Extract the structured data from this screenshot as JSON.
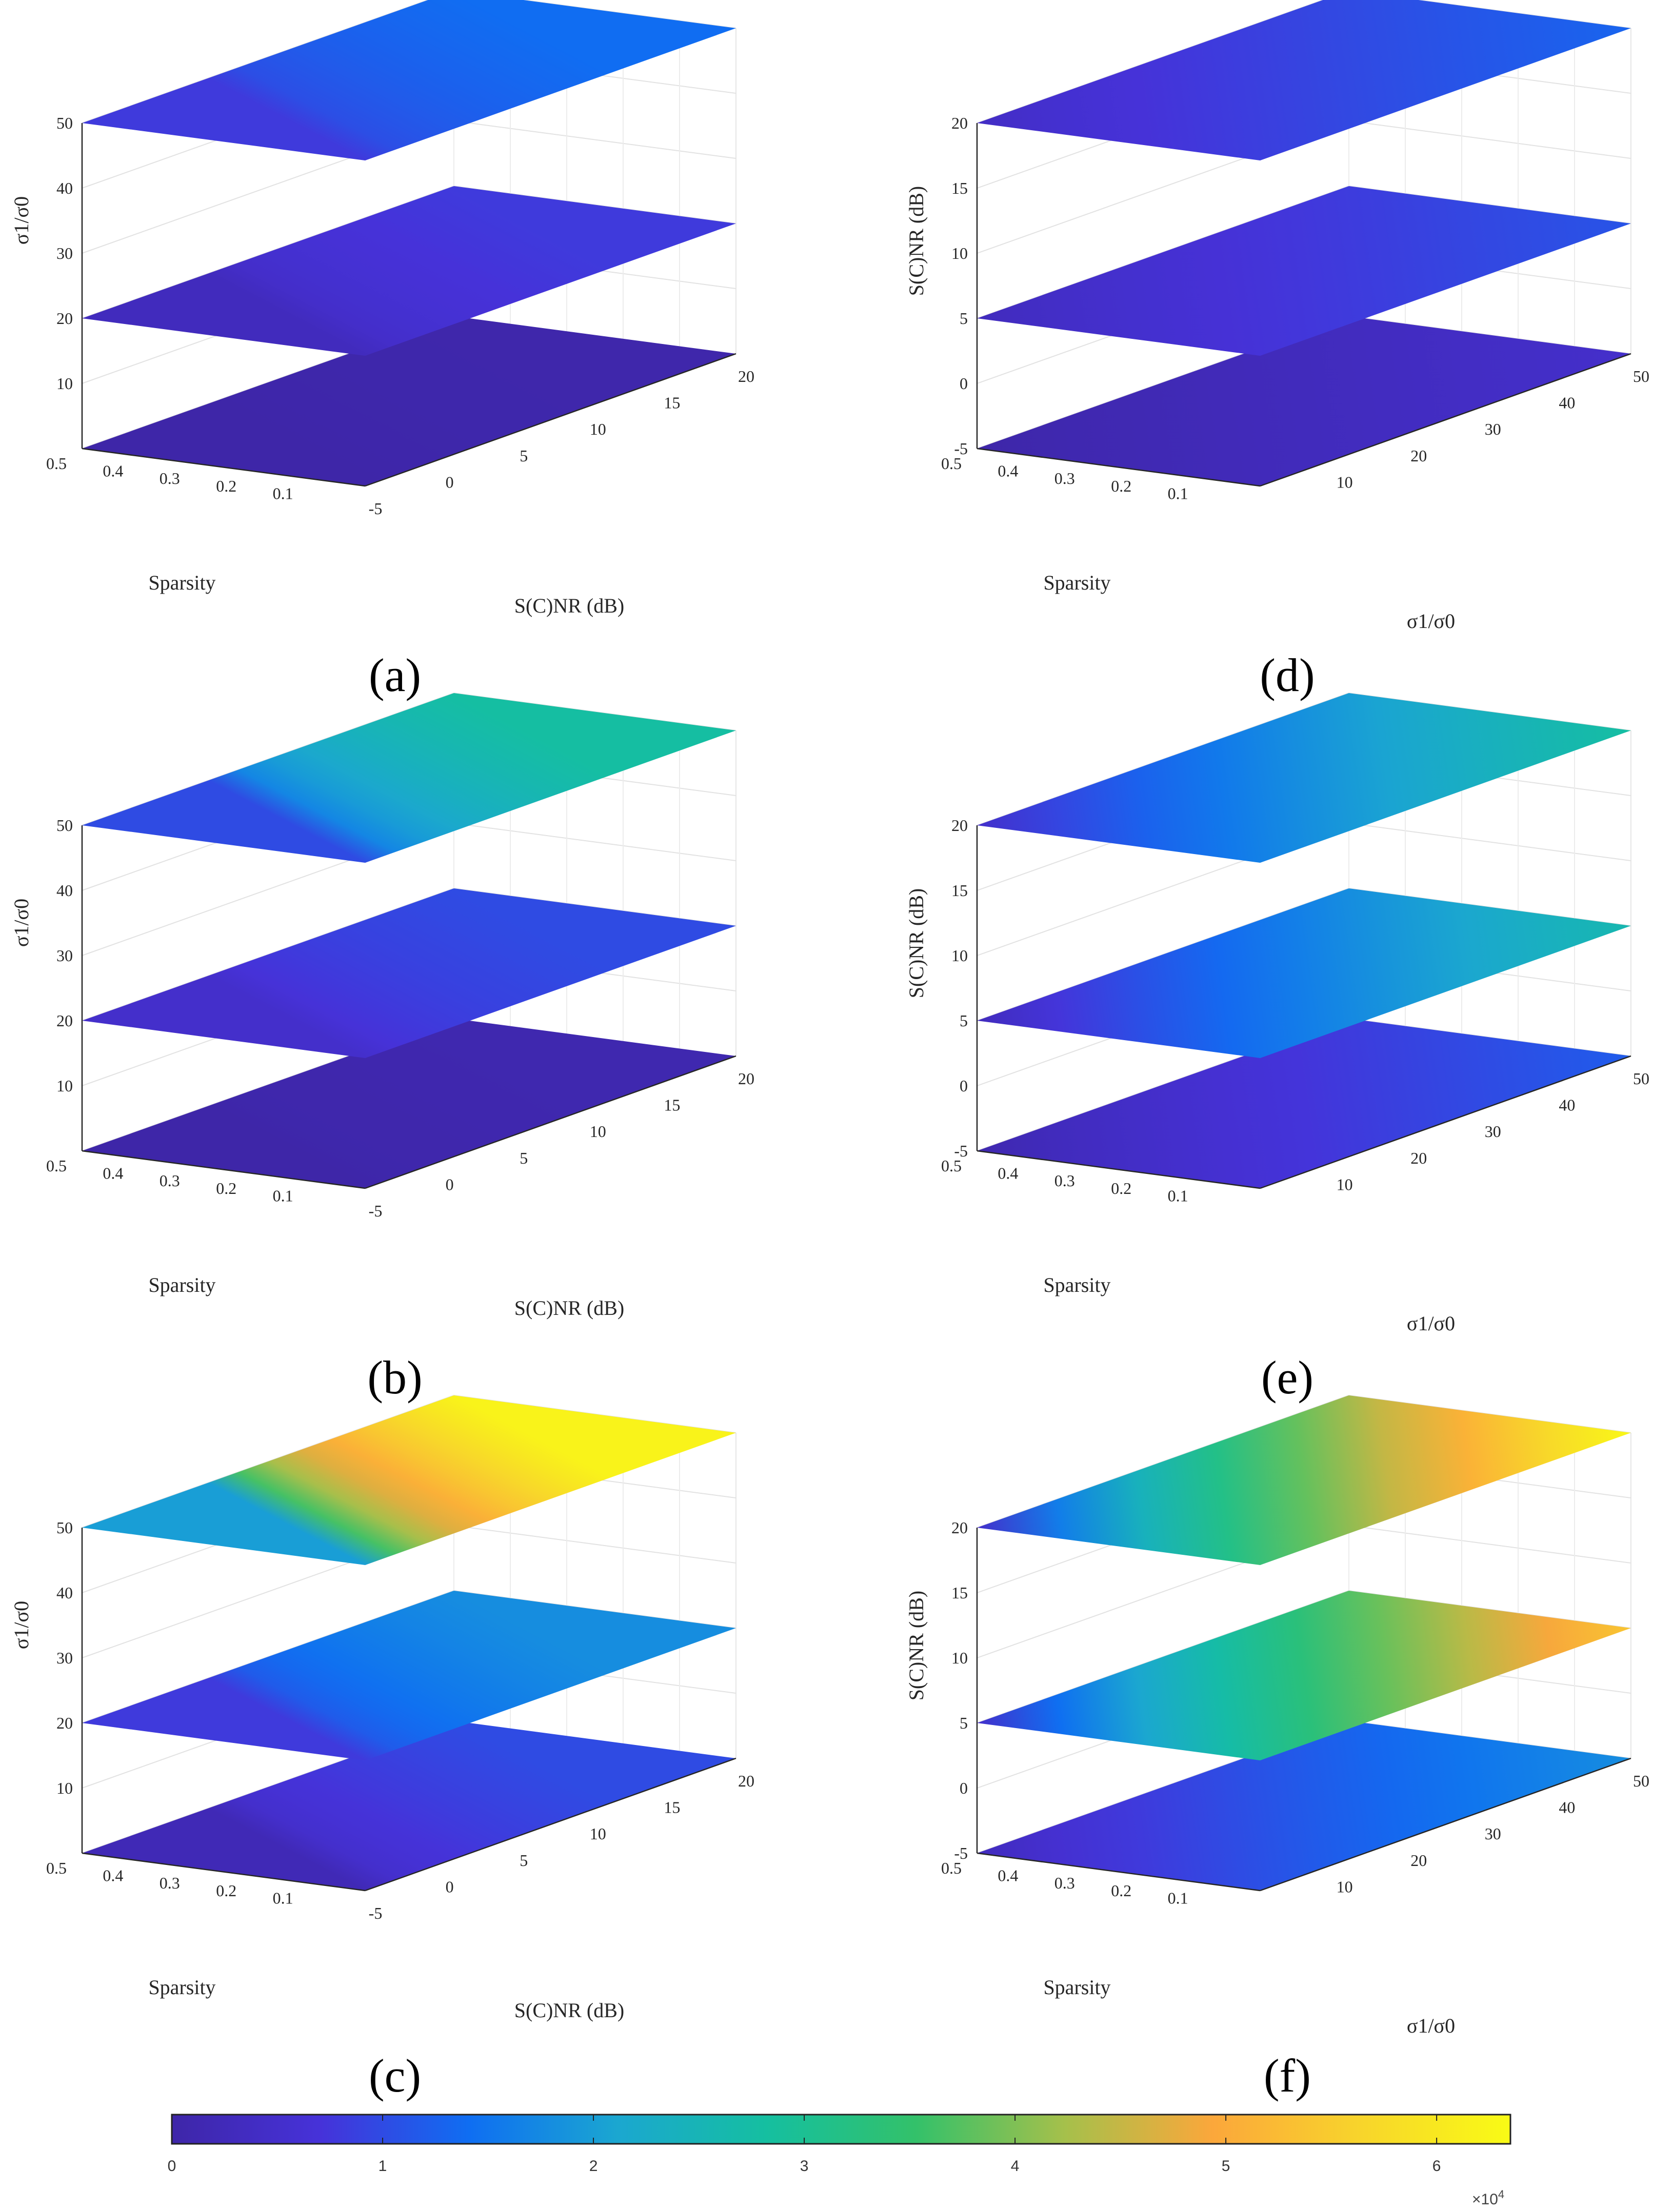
{
  "figure": {
    "colorbar": {
      "ticks": [
        "0",
        "1",
        "2",
        "3",
        "4",
        "5",
        "6"
      ],
      "exponent": "×10",
      "exponent_power": "4",
      "colormap": [
        "#3e26a8",
        "#4632d9",
        "#0f6ef2",
        "#1ba7d0",
        "#15bfa0",
        "#33c16a",
        "#a5c04b",
        "#fba73b",
        "#f8d52b",
        "#f9fb15"
      ]
    }
  },
  "chart_data": [
    {
      "label": "(a)",
      "type": "slice",
      "x_axis": {
        "label": "Sparsity",
        "ticks": [
          "0.1",
          "0.2",
          "0.3",
          "0.4",
          "0.5"
        ]
      },
      "y_axis": {
        "label": "S(C)NR (dB)",
        "ticks": [
          "-5",
          "0",
          "5",
          "10",
          "15",
          "20"
        ]
      },
      "z_axis": {
        "label": "σ1/σ0",
        "ticks": [
          "10",
          "20",
          "30",
          "40",
          "50"
        ]
      },
      "slice_levels": [
        0,
        20,
        50
      ],
      "slices_description": "value range of each slice ×10^4",
      "slices": [
        {
          "level": 0,
          "min": 0,
          "max": 0.05
        },
        {
          "level": 20,
          "min": 0.3,
          "max": 0.8
        },
        {
          "level": 50,
          "min": 0.8,
          "max": 1.4
        }
      ],
      "grid": true
    },
    {
      "label": "(b)",
      "type": "slice",
      "x_axis": {
        "label": "Sparsity",
        "ticks": [
          "0.1",
          "0.2",
          "0.3",
          "0.4",
          "0.5"
        ]
      },
      "y_axis": {
        "label": "S(C)NR (dB)",
        "ticks": [
          "-5",
          "0",
          "5",
          "10",
          "15",
          "20"
        ]
      },
      "z_axis": {
        "label": "σ1/σ0",
        "ticks": [
          "10",
          "20",
          "30",
          "40",
          "50"
        ]
      },
      "slice_levels": [
        0,
        20,
        50
      ],
      "slices": [
        {
          "level": 0,
          "min": 0,
          "max": 0.1
        },
        {
          "level": 20,
          "min": 0.5,
          "max": 1.0
        },
        {
          "level": 50,
          "min": 1.0,
          "max": 2.8
        }
      ],
      "grid": true
    },
    {
      "label": "(c)",
      "type": "slice",
      "x_axis": {
        "label": "Sparsity",
        "ticks": [
          "0.1",
          "0.2",
          "0.3",
          "0.4",
          "0.5"
        ]
      },
      "y_axis": {
        "label": "S(C)NR (dB)",
        "ticks": [
          "-5",
          "0",
          "5",
          "10",
          "15",
          "20"
        ]
      },
      "z_axis": {
        "label": "σ1/σ0",
        "ticks": [
          "10",
          "20",
          "30",
          "40",
          "50"
        ]
      },
      "slice_levels": [
        0,
        20,
        50
      ],
      "slices": [
        {
          "level": 0,
          "min": 0.2,
          "max": 1.0
        },
        {
          "level": 20,
          "min": 0.8,
          "max": 1.8
        },
        {
          "level": 50,
          "min": 2.0,
          "max": 6.2
        }
      ],
      "grid": true
    },
    {
      "label": "(d)",
      "type": "slice",
      "x_axis": {
        "label": "Sparsity",
        "ticks": [
          "0.1",
          "0.2",
          "0.3",
          "0.4",
          "0.5"
        ]
      },
      "y_axis": {
        "label": "σ1/σ0",
        "ticks": [
          "10",
          "20",
          "30",
          "40",
          "50"
        ]
      },
      "z_axis": {
        "label": "S(C)NR (dB)",
        "ticks": [
          "-5",
          "0",
          "5",
          "10",
          "15",
          "20"
        ]
      },
      "slice_levels": [
        -5,
        5,
        20
      ],
      "slices": [
        {
          "level": -5,
          "min": 0,
          "max": 0.5
        },
        {
          "level": 5,
          "min": 0.3,
          "max": 1.1
        },
        {
          "level": 20,
          "min": 0.4,
          "max": 1.3
        }
      ],
      "grid": true
    },
    {
      "label": "(e)",
      "type": "slice",
      "x_axis": {
        "label": "Sparsity",
        "ticks": [
          "0.1",
          "0.2",
          "0.3",
          "0.4",
          "0.5"
        ]
      },
      "y_axis": {
        "label": "σ1/σ0",
        "ticks": [
          "10",
          "20",
          "30",
          "40",
          "50"
        ]
      },
      "z_axis": {
        "label": "S(C)NR (dB)",
        "ticks": [
          "-5",
          "0",
          "5",
          "10",
          "15",
          "20"
        ]
      },
      "slice_levels": [
        -5,
        5,
        20
      ],
      "slices": [
        {
          "level": -5,
          "min": 0.1,
          "max": 1.2
        },
        {
          "level": 5,
          "min": 0.3,
          "max": 2.6
        },
        {
          "level": 20,
          "min": 0.5,
          "max": 2.8
        }
      ],
      "grid": true
    },
    {
      "label": "(f)",
      "type": "slice",
      "x_axis": {
        "label": "Sparsity",
        "ticks": [
          "0.1",
          "0.2",
          "0.3",
          "0.4",
          "0.5"
        ]
      },
      "y_axis": {
        "label": "σ1/σ0",
        "ticks": [
          "10",
          "20",
          "30",
          "40",
          "50"
        ]
      },
      "z_axis": {
        "label": "S(C)NR (dB)",
        "ticks": [
          "-5",
          "0",
          "5",
          "10",
          "15",
          "20"
        ]
      },
      "slice_levels": [
        -5,
        5,
        20
      ],
      "slices": [
        {
          "level": -5,
          "min": 0.3,
          "max": 1.8
        },
        {
          "level": 5,
          "min": 0.5,
          "max": 5.4
        },
        {
          "level": 20,
          "min": 0.5,
          "max": 6.3
        }
      ],
      "grid": true
    }
  ]
}
